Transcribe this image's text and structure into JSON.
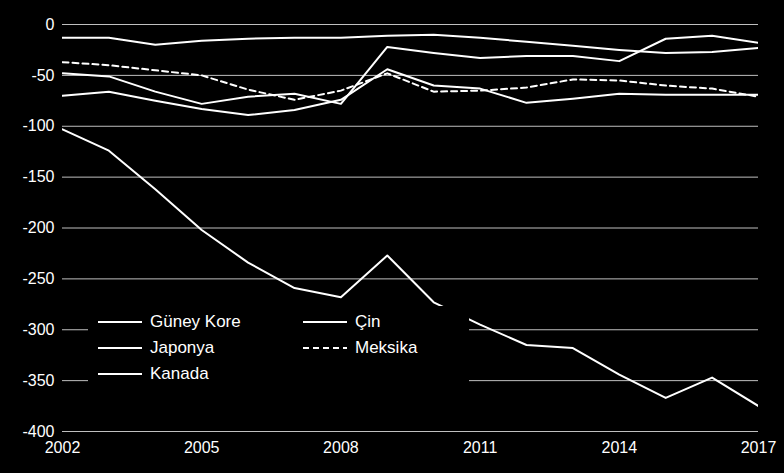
{
  "chart_data": {
    "type": "line",
    "x": [
      2002,
      2003,
      2004,
      2005,
      2006,
      2007,
      2008,
      2009,
      2010,
      2011,
      2012,
      2013,
      2014,
      2015,
      2016,
      2017
    ],
    "series": [
      {
        "name": "Güney Kore",
        "color": "#ffffff",
        "line_style": "solid",
        "values": [
          -13,
          -13,
          -20,
          -16,
          -14,
          -13,
          -13,
          -11,
          -10,
          -13,
          -17,
          -21,
          -25,
          -28,
          -27,
          -23
        ]
      },
      {
        "name": "Çin",
        "color": "#ffffff",
        "line_style": "solid",
        "values": [
          -103,
          -124,
          -162,
          -202,
          -234,
          -259,
          -268,
          -227,
          -273,
          -295,
          -315,
          -318,
          -344,
          -367,
          -347,
          -375
        ]
      },
      {
        "name": "Japonya",
        "color": "#ffffff",
        "line_style": "solid",
        "values": [
          -70,
          -66,
          -75,
          -83,
          -89,
          -84,
          -74,
          -44,
          -60,
          -63,
          -77,
          -73,
          -68,
          -69,
          -69,
          -69
        ]
      },
      {
        "name": "Meksika",
        "color": "#ffffff",
        "line_style": "dashed",
        "values": [
          -37,
          -40,
          -45,
          -50,
          -64,
          -74,
          -65,
          -48,
          -66,
          -65,
          -62,
          -54,
          -55,
          -60,
          -63,
          -71
        ]
      },
      {
        "name": "Kanada",
        "color": "#ffffff",
        "line_style": "solid",
        "values": [
          -48,
          -51,
          -66,
          -78,
          -71,
          -68,
          -78,
          -22,
          -28,
          -33,
          -31,
          -31,
          -36,
          -14,
          -11,
          -18
        ]
      }
    ],
    "xlim": [
      2002,
      2017
    ],
    "xticks": [
      2002,
      2005,
      2008,
      2011,
      2014,
      2017
    ],
    "ylim": [
      -400,
      0
    ],
    "yticks": [
      -400,
      -350,
      -300,
      -250,
      -200,
      -150,
      -100,
      -50,
      0
    ],
    "grid": true,
    "legend": "bottom-left"
  }
}
